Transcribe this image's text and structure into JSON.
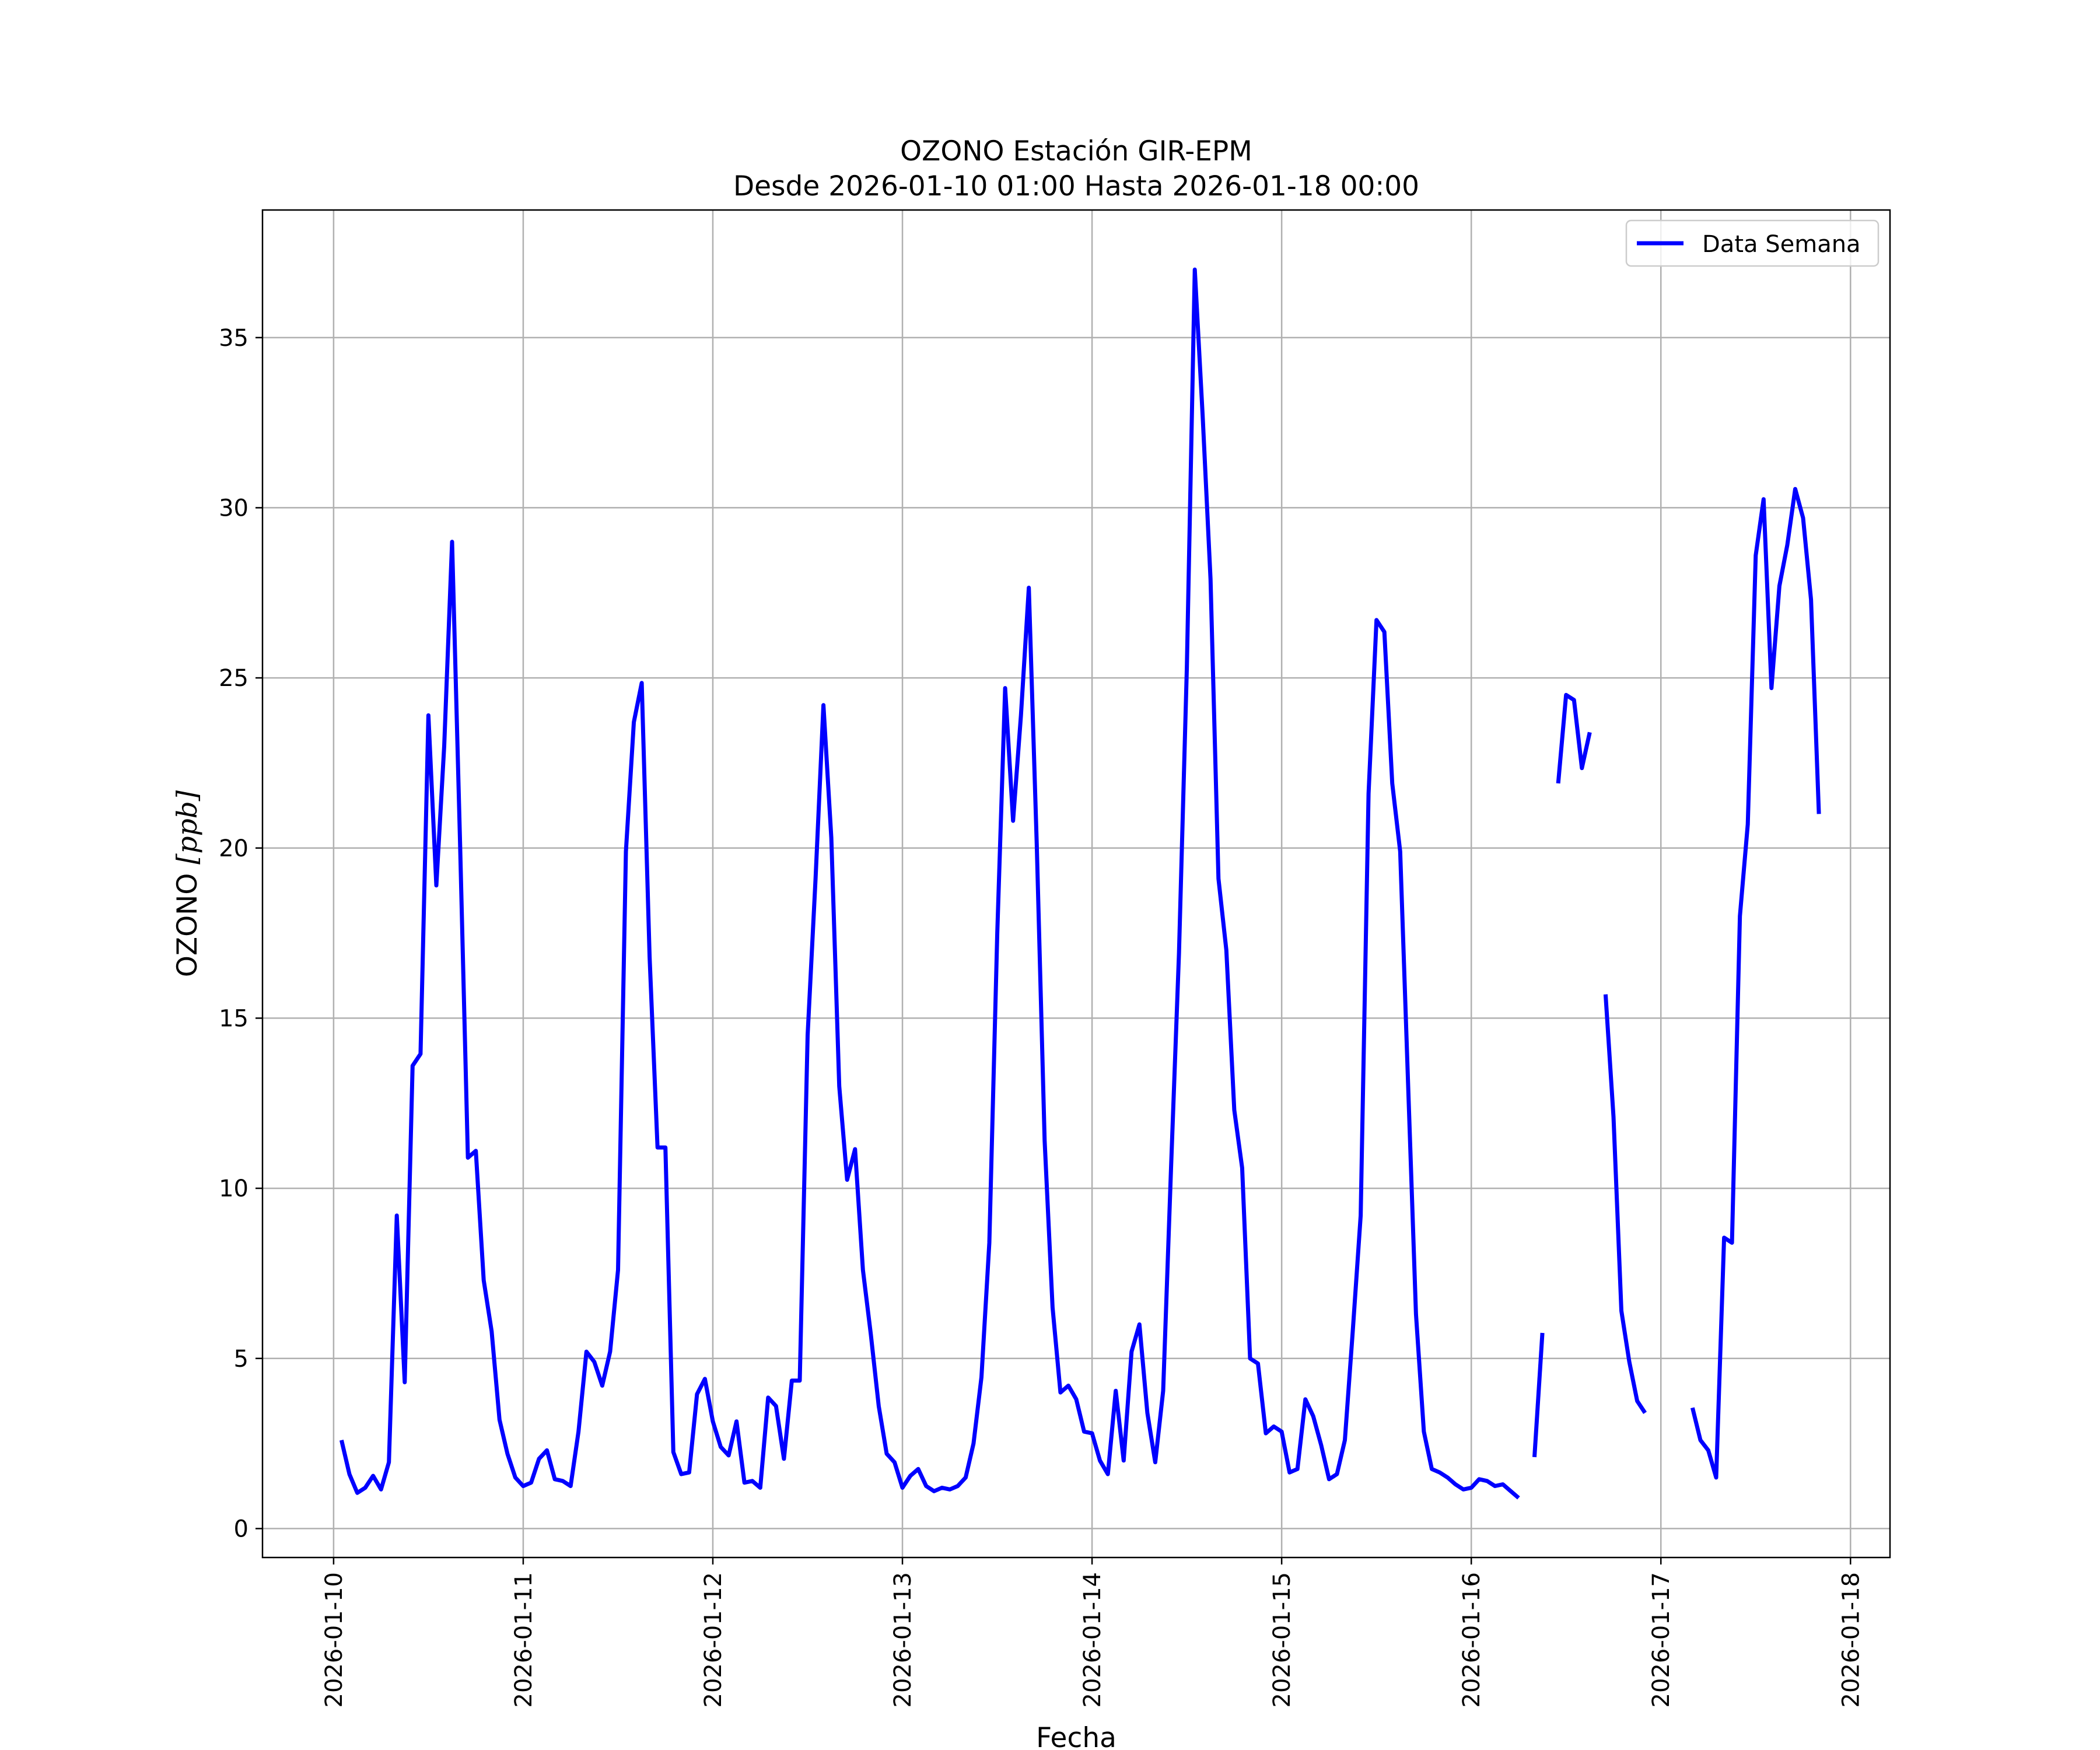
{
  "chart_data": {
    "type": "line",
    "title": "OZONO Estación GIR-EPM",
    "subtitle": "Desde 2026-01-10 01:00 Hasta 2026-01-18 00:00",
    "xlabel": "Fecha",
    "ylabel_main": "OZONO ",
    "ylabel_unit": "[ppb]",
    "xlim": [
      "2026-01-09 15:00",
      "2026-01-18 05:00"
    ],
    "ylim": [
      -0.85,
      38.75
    ],
    "yticks": [
      0,
      5,
      10,
      15,
      20,
      25,
      30,
      35
    ],
    "xticks": [
      "2026-01-10",
      "2026-01-11",
      "2026-01-12",
      "2026-01-13",
      "2026-01-14",
      "2026-01-15",
      "2026-01-16",
      "2026-01-17",
      "2026-01-18"
    ],
    "grid": true,
    "legend_position": "top-right",
    "colors": {
      "series": "#0000ff",
      "grid": "#b0b0b0"
    },
    "series": [
      {
        "name": "Data Semana",
        "points": [
          [
            "2026-01-10 01:00",
            2.6
          ],
          [
            "2026-01-10 02:00",
            1.6
          ],
          [
            "2026-01-10 03:00",
            1.05
          ],
          [
            "2026-01-10 04:00",
            1.2
          ],
          [
            "2026-01-10 05:00",
            1.55
          ],
          [
            "2026-01-10 06:00",
            1.15
          ],
          [
            "2026-01-10 07:00",
            1.95
          ],
          [
            "2026-01-10 08:00",
            9.2
          ],
          [
            "2026-01-10 09:00",
            4.3
          ],
          [
            "2026-01-10 10:00",
            13.6
          ],
          [
            "2026-01-10 11:00",
            13.95
          ],
          [
            "2026-01-10 12:00",
            23.9
          ],
          [
            "2026-01-10 13:00",
            18.9
          ],
          [
            "2026-01-10 14:00",
            23.0
          ],
          [
            "2026-01-10 15:00",
            29.0
          ],
          [
            "2026-01-10 16:00",
            20.2
          ],
          [
            "2026-01-10 17:00",
            10.9
          ],
          [
            "2026-01-10 18:00",
            11.1
          ],
          [
            "2026-01-10 19:00",
            7.3
          ],
          [
            "2026-01-10 20:00",
            5.8
          ],
          [
            "2026-01-10 21:00",
            3.2
          ],
          [
            "2026-01-10 22:00",
            2.2
          ],
          [
            "2026-01-10 23:00",
            1.5
          ],
          [
            "2026-01-11 00:00",
            1.25
          ],
          [
            "2026-01-11 01:00",
            1.35
          ],
          [
            "2026-01-11 02:00",
            2.05
          ],
          [
            "2026-01-11 03:00",
            2.3
          ],
          [
            "2026-01-11 04:00",
            1.45
          ],
          [
            "2026-01-11 05:00",
            1.4
          ],
          [
            "2026-01-11 06:00",
            1.25
          ],
          [
            "2026-01-11 07:00",
            2.85
          ],
          [
            "2026-01-11 08:00",
            5.2
          ],
          [
            "2026-01-11 09:00",
            4.9
          ],
          [
            "2026-01-11 10:00",
            4.2
          ],
          [
            "2026-01-11 11:00",
            5.2
          ],
          [
            "2026-01-11 12:00",
            7.6
          ],
          [
            "2026-01-11 13:00",
            19.9
          ],
          [
            "2026-01-11 14:00",
            23.7
          ],
          [
            "2026-01-11 15:00",
            24.85
          ],
          [
            "2026-01-11 16:00",
            16.8
          ],
          [
            "2026-01-11 17:00",
            11.2
          ],
          [
            "2026-01-11 18:00",
            11.2
          ],
          [
            "2026-01-11 19:00",
            2.25
          ],
          [
            "2026-01-11 20:00",
            1.6
          ],
          [
            "2026-01-11 21:00",
            1.65
          ],
          [
            "2026-01-11 22:00",
            3.95
          ],
          [
            "2026-01-11 23:00",
            4.4
          ],
          [
            "2026-01-12 00:00",
            3.15
          ],
          [
            "2026-01-12 01:00",
            2.4
          ],
          [
            "2026-01-12 02:00",
            2.15
          ],
          [
            "2026-01-12 03:00",
            3.15
          ],
          [
            "2026-01-12 04:00",
            1.35
          ],
          [
            "2026-01-12 05:00",
            1.4
          ],
          [
            "2026-01-12 06:00",
            1.2
          ],
          [
            "2026-01-12 07:00",
            3.85
          ],
          [
            "2026-01-12 08:00",
            3.6
          ],
          [
            "2026-01-12 09:00",
            2.05
          ],
          [
            "2026-01-12 10:00",
            4.35
          ],
          [
            "2026-01-12 11:00",
            4.35
          ],
          [
            "2026-01-12 12:00",
            14.5
          ],
          [
            "2026-01-12 13:00",
            19.1
          ],
          [
            "2026-01-12 14:00",
            24.2
          ],
          [
            "2026-01-12 15:00",
            20.3
          ],
          [
            "2026-01-12 16:00",
            13.0
          ],
          [
            "2026-01-12 17:00",
            10.25
          ],
          [
            "2026-01-12 18:00",
            11.15
          ],
          [
            "2026-01-12 19:00",
            7.6
          ],
          [
            "2026-01-12 20:00",
            5.7
          ],
          [
            "2026-01-12 21:00",
            3.6
          ],
          [
            "2026-01-12 22:00",
            2.2
          ],
          [
            "2026-01-12 23:00",
            1.95
          ],
          [
            "2026-01-13 00:00",
            1.2
          ],
          [
            "2026-01-13 01:00",
            1.55
          ],
          [
            "2026-01-13 02:00",
            1.75
          ],
          [
            "2026-01-13 03:00",
            1.25
          ],
          [
            "2026-01-13 04:00",
            1.1
          ],
          [
            "2026-01-13 05:00",
            1.2
          ],
          [
            "2026-01-13 06:00",
            1.15
          ],
          [
            "2026-01-13 07:00",
            1.25
          ],
          [
            "2026-01-13 08:00",
            1.5
          ],
          [
            "2026-01-13 09:00",
            2.5
          ],
          [
            "2026-01-13 10:00",
            4.45
          ],
          [
            "2026-01-13 11:00",
            8.4
          ],
          [
            "2026-01-13 12:00",
            17.5
          ],
          [
            "2026-01-13 13:00",
            24.7
          ],
          [
            "2026-01-13 14:00",
            20.8
          ],
          [
            "2026-01-13 15:00",
            23.9
          ],
          [
            "2026-01-13 16:00",
            27.65
          ],
          [
            "2026-01-13 17:00",
            20.1
          ],
          [
            "2026-01-13 18:00",
            11.4
          ],
          [
            "2026-01-13 19:00",
            6.5
          ],
          [
            "2026-01-13 20:00",
            4.0
          ],
          [
            "2026-01-13 21:00",
            4.2
          ],
          [
            "2026-01-13 22:00",
            3.8
          ],
          [
            "2026-01-13 23:00",
            2.85
          ],
          [
            "2026-01-14 00:00",
            2.8
          ],
          [
            "2026-01-14 01:00",
            2.0
          ],
          [
            "2026-01-14 02:00",
            1.6
          ],
          [
            "2026-01-14 03:00",
            4.05
          ],
          [
            "2026-01-14 04:00",
            2.0
          ],
          [
            "2026-01-14 05:00",
            5.2
          ],
          [
            "2026-01-14 06:00",
            6.0
          ],
          [
            "2026-01-14 07:00",
            3.4
          ],
          [
            "2026-01-14 08:00",
            1.95
          ],
          [
            "2026-01-14 09:00",
            4.05
          ],
          [
            "2026-01-14 10:00",
            10.6
          ],
          [
            "2026-01-14 11:00",
            16.9
          ],
          [
            "2026-01-14 12:00",
            25.3
          ],
          [
            "2026-01-14 13:00",
            37.0
          ],
          [
            "2026-01-14 14:00",
            32.7
          ],
          [
            "2026-01-14 15:00",
            27.9
          ],
          [
            "2026-01-14 16:00",
            19.1
          ],
          [
            "2026-01-14 17:00",
            17.0
          ],
          [
            "2026-01-14 18:00",
            12.3
          ],
          [
            "2026-01-14 19:00",
            10.6
          ],
          [
            "2026-01-14 20:00",
            5.0
          ],
          [
            "2026-01-14 21:00",
            4.85
          ],
          [
            "2026-01-14 22:00",
            2.8
          ],
          [
            "2026-01-14 23:00",
            3.0
          ],
          [
            "2026-01-15 00:00",
            2.85
          ],
          [
            "2026-01-15 01:00",
            1.65
          ],
          [
            "2026-01-15 02:00",
            1.75
          ],
          [
            "2026-01-15 03:00",
            3.8
          ],
          [
            "2026-01-15 04:00",
            3.3
          ],
          [
            "2026-01-15 05:00",
            2.45
          ],
          [
            "2026-01-15 06:00",
            1.45
          ],
          [
            "2026-01-15 07:00",
            1.6
          ],
          [
            "2026-01-15 08:00",
            2.6
          ],
          [
            "2026-01-15 09:00",
            5.8
          ],
          [
            "2026-01-15 10:00",
            9.2
          ],
          [
            "2026-01-15 11:00",
            21.6
          ],
          [
            "2026-01-15 12:00",
            26.7
          ],
          [
            "2026-01-15 13:00",
            26.35
          ],
          [
            "2026-01-15 14:00",
            21.9
          ],
          [
            "2026-01-15 15:00",
            19.9
          ],
          [
            "2026-01-15 16:00",
            13.1
          ],
          [
            "2026-01-15 17:00",
            6.3
          ],
          [
            "2026-01-15 18:00",
            2.85
          ],
          [
            "2026-01-15 19:00",
            1.75
          ],
          [
            "2026-01-15 20:00",
            1.65
          ],
          [
            "2026-01-15 21:00",
            1.5
          ],
          [
            "2026-01-15 22:00",
            1.3
          ],
          [
            "2026-01-15 23:00",
            1.15
          ],
          [
            "2026-01-16 00:00",
            1.2
          ],
          [
            "2026-01-16 01:00",
            1.45
          ],
          [
            "2026-01-16 02:00",
            1.4
          ],
          [
            "2026-01-16 03:00",
            1.25
          ],
          [
            "2026-01-16 04:00",
            1.3
          ],
          [
            "2026-01-16 05:00",
            1.1
          ],
          [
            "2026-01-16 06:00",
            0.9
          ],
          [
            "2026-01-16 07:00",
            null
          ],
          [
            "2026-01-16 08:00",
            2.1
          ],
          [
            "2026-01-16 09:00",
            5.75
          ],
          [
            "2026-01-16 10:00",
            null
          ],
          [
            "2026-01-16 11:00",
            21.9
          ],
          [
            "2026-01-16 12:00",
            24.5
          ],
          [
            "2026-01-16 13:00",
            24.35
          ],
          [
            "2026-01-16 14:00",
            22.35
          ],
          [
            "2026-01-16 15:00",
            23.4
          ],
          [
            "2026-01-16 16:00",
            null
          ],
          [
            "2026-01-16 17:00",
            15.7
          ],
          [
            "2026-01-16 18:00",
            12.1
          ],
          [
            "2026-01-16 19:00",
            6.4
          ],
          [
            "2026-01-16 20:00",
            4.9
          ],
          [
            "2026-01-16 21:00",
            3.75
          ],
          [
            "2026-01-16 22:00",
            3.4
          ],
          [
            "2026-01-16 23:00",
            null
          ],
          [
            "2026-01-17 00:00",
            null
          ],
          [
            "2026-01-17 01:00",
            null
          ],
          [
            "2026-01-17 02:00",
            null
          ],
          [
            "2026-01-17 03:00",
            null
          ],
          [
            "2026-01-17 04:00",
            3.55
          ],
          [
            "2026-01-17 05:00",
            2.6
          ],
          [
            "2026-01-17 06:00",
            2.3
          ],
          [
            "2026-01-17 07:00",
            1.5
          ],
          [
            "2026-01-17 08:00",
            8.55
          ],
          [
            "2026-01-17 09:00",
            8.4
          ],
          [
            "2026-01-17 10:00",
            18.0
          ],
          [
            "2026-01-17 11:00",
            20.7
          ],
          [
            "2026-01-17 12:00",
            28.6
          ],
          [
            "2026-01-17 13:00",
            30.25
          ],
          [
            "2026-01-17 14:00",
            24.7
          ],
          [
            "2026-01-17 15:00",
            27.7
          ],
          [
            "2026-01-17 16:00",
            28.9
          ],
          [
            "2026-01-17 17:00",
            30.55
          ],
          [
            "2026-01-17 18:00",
            29.7
          ],
          [
            "2026-01-17 19:00",
            27.3
          ],
          [
            "2026-01-17 20:00",
            21.0
          ]
        ]
      }
    ]
  }
}
